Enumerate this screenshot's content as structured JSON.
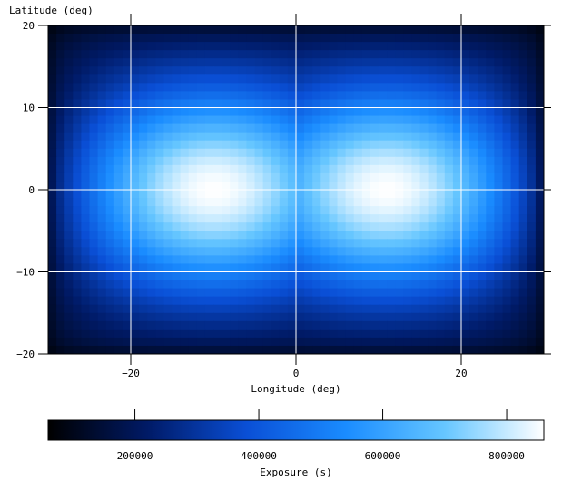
{
  "chart_data": {
    "type": "heatmap",
    "title": "",
    "xlabel": "Longitude (deg)",
    "ylabel": "Latitude (deg)",
    "xlim": [
      -30,
      30
    ],
    "ylim": [
      -20,
      20
    ],
    "x_ticks": [
      {
        "value": -20,
        "label": "−20"
      },
      {
        "value": 0,
        "label": "0"
      },
      {
        "value": 20,
        "label": "20"
      }
    ],
    "y_ticks": [
      {
        "value": -20,
        "label": "−20"
      },
      {
        "value": -10,
        "label": "−10"
      },
      {
        "value": 0,
        "label": "0"
      },
      {
        "value": 10,
        "label": "10"
      },
      {
        "value": 20,
        "label": "20"
      }
    ],
    "grid": true,
    "grid_color": "#ffffff",
    "field": {
      "description": "exposure map peaking near two hotspots",
      "peaks": [
        {
          "lon": -10,
          "lat": 0,
          "value": 850000
        },
        {
          "lon": 11,
          "lat": 0,
          "value": 860000
        }
      ],
      "edge_value": 60000
    },
    "colorbar": {
      "label": "Exposure (s)",
      "range": [
        60000,
        860000
      ],
      "ticks": [
        {
          "value": 200000,
          "label": "200000"
        },
        {
          "value": 400000,
          "label": "400000"
        },
        {
          "value": 600000,
          "label": "600000"
        },
        {
          "value": 800000,
          "label": "800000"
        }
      ],
      "colormap": [
        "#000000",
        "#001a66",
        "#0a4fd6",
        "#1a8cff",
        "#66c6ff",
        "#ffffff"
      ]
    }
  }
}
